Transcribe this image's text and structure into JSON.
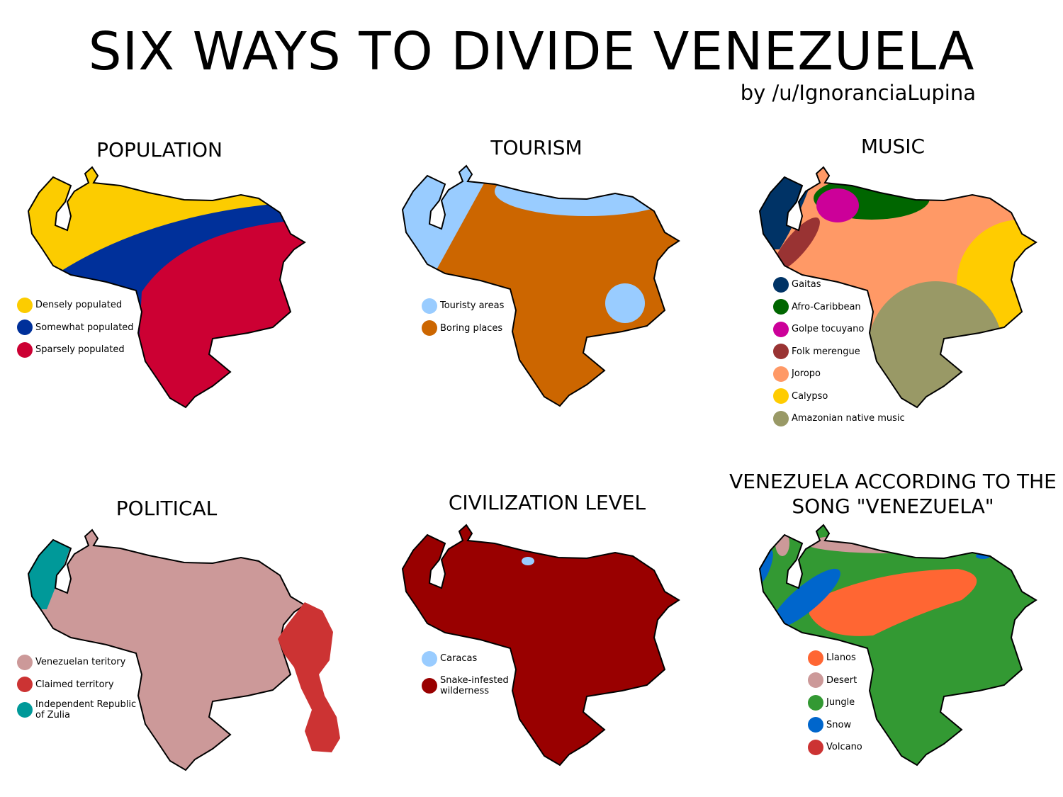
{
  "title": "SIX WAYS TO DIVIDE VENEZUELA",
  "byline": "by /u/IgnoranciaLupina",
  "panels": [
    {
      "title": "POPULATION",
      "legend": [
        {
          "label": "Densely populated",
          "color": "#fccc00"
        },
        {
          "label": "Somewhat populated",
          "color": "#00309a"
        },
        {
          "label": "Sparsely populated",
          "color": "#cc0033"
        }
      ]
    },
    {
      "title": "TOURISM",
      "legend": [
        {
          "label": "Touristy areas",
          "color": "#99ccff"
        },
        {
          "label": "Boring places",
          "color": "#cc6600"
        }
      ]
    },
    {
      "title": "MUSIC",
      "legend": [
        {
          "label": "Gaitas",
          "color": "#003366"
        },
        {
          "label": "Afro-Caribbean",
          "color": "#006600"
        },
        {
          "label": "Golpe tocuyano",
          "color": "#cc0099"
        },
        {
          "label": "Folk merengue",
          "color": "#993333"
        },
        {
          "label": "Joropo",
          "color": "#ff9966"
        },
        {
          "label": "Calypso",
          "color": "#ffcc00"
        },
        {
          "label": "Amazonian native music",
          "color": "#999966"
        }
      ]
    },
    {
      "title": "POLITICAL",
      "legend": [
        {
          "label": "Venezuelan teritory",
          "color": "#cc9999"
        },
        {
          "label": "Claimed territory",
          "color": "#cc3333"
        },
        {
          "label": "Independent Republic of Zulia",
          "color": "#009999"
        }
      ]
    },
    {
      "title": "CIVILIZATION LEVEL",
      "legend": [
        {
          "label": "Caracas",
          "color": "#99ccff"
        },
        {
          "label": "Snake-infested wilderness",
          "color": "#990000"
        }
      ]
    },
    {
      "title": "VENEZUELA ACCORDING TO THE SONG \"VENEZUELA\"",
      "legend": [
        {
          "label": "Llanos",
          "color": "#ff6633"
        },
        {
          "label": "Desert",
          "color": "#cc9999"
        },
        {
          "label": "Jungle",
          "color": "#339933"
        },
        {
          "label": "Snow",
          "color": "#0066cc"
        },
        {
          "label": "Volcano",
          "color": "#cc3333"
        }
      ]
    }
  ]
}
